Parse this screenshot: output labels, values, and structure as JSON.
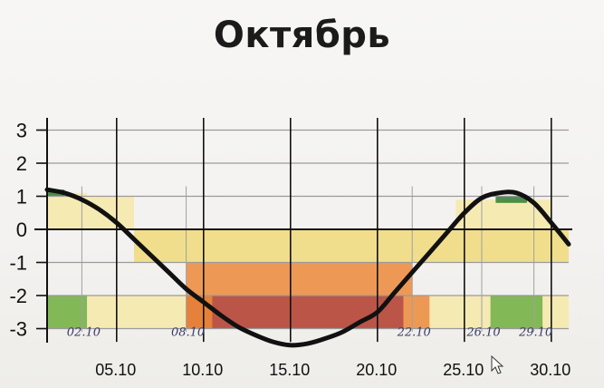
{
  "chart_data": {
    "type": "line",
    "title": "Октябрь",
    "xlabel": "",
    "ylabel": "",
    "xlim": [
      1,
      31
    ],
    "ylim": [
      -3,
      3
    ],
    "grid": true,
    "y_ticks": [
      "3",
      "2",
      "1",
      "0",
      "-1",
      "-2",
      "-3"
    ],
    "x_ticks": [
      {
        "day": 5,
        "label": "05.10"
      },
      {
        "day": 10,
        "label": "10.10"
      },
      {
        "day": 15,
        "label": "15.10"
      },
      {
        "day": 20,
        "label": "20.10"
      },
      {
        "day": 25,
        "label": "25.10"
      },
      {
        "day": 30,
        "label": "30.10"
      }
    ],
    "handwritten_labels": [
      {
        "day": 3,
        "label": "02.10"
      },
      {
        "day": 9,
        "label": "08.10"
      },
      {
        "day": 22,
        "label": "22.10"
      },
      {
        "day": 26,
        "label": "26.10"
      },
      {
        "day": 29,
        "label": "29.10"
      }
    ],
    "series": [
      {
        "x": [
          1,
          2,
          3,
          4,
          5,
          6,
          7,
          8,
          9,
          10,
          11,
          12,
          13,
          14,
          15,
          16,
          17,
          18,
          19,
          20,
          21,
          22,
          23,
          24,
          25,
          26,
          27,
          28,
          29,
          30,
          31
        ],
        "y": [
          1.2,
          1.1,
          0.9,
          0.6,
          0.2,
          -0.3,
          -0.8,
          -1.3,
          -1.8,
          -2.2,
          -2.6,
          -2.95,
          -3.2,
          -3.4,
          -3.5,
          -3.45,
          -3.3,
          -3.1,
          -2.8,
          -2.5,
          -1.9,
          -1.3,
          -0.7,
          -0.1,
          0.5,
          0.95,
          1.1,
          1.1,
          0.8,
          0.2,
          -0.45
        ],
        "color": "#111111"
      }
    ],
    "band_colors": {
      "light_yellow": "#f6e9a8",
      "yellow": "#f0da7a",
      "orange": "#ec8a3a",
      "dark_red": "#b23a2a",
      "green": "#6fae3c",
      "dark_green": "#2f7d32"
    }
  }
}
